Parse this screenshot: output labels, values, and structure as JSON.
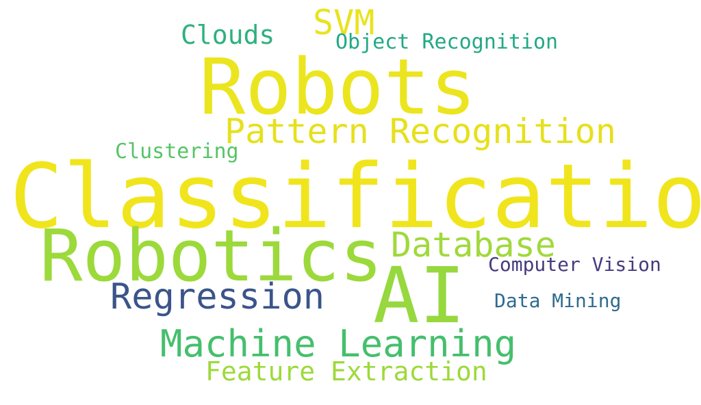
{
  "word_cloud": {
    "background_color": "#ffffff",
    "words": {
      "robots": {
        "text": "Robots",
        "color": "#ebe51f"
      },
      "classification": {
        "text": "Classification",
        "color": "#f0e51d"
      },
      "robotics": {
        "text": "Robotics",
        "color": "#9cd93b"
      },
      "ai": {
        "text": "AI",
        "color": "#96d83e"
      },
      "pattern_recognition": {
        "text": "Pattern Recognition",
        "color": "#e6e01c"
      },
      "database": {
        "text": "Database",
        "color": "#a0d93c"
      },
      "regression": {
        "text": "Regression",
        "color": "#3b548a"
      },
      "machine_learning": {
        "text": "Machine Learning",
        "color": "#45bf6d"
      },
      "feature_extraction": {
        "text": "Feature Extraction",
        "color": "#9dd93a"
      },
      "svm": {
        "text": "SVM",
        "color": "#e8e31f"
      },
      "clouds": {
        "text": "Clouds",
        "color": "#2fb07e"
      },
      "object_recognition": {
        "text": "Object Recognition",
        "color": "#22a884"
      },
      "clustering": {
        "text": "Clustering",
        "color": "#55c466"
      },
      "computer_vision": {
        "text": "Computer Vision",
        "color": "#463a7e"
      },
      "data_mining": {
        "text": "Data Mining",
        "color": "#2f6b8e"
      }
    }
  }
}
